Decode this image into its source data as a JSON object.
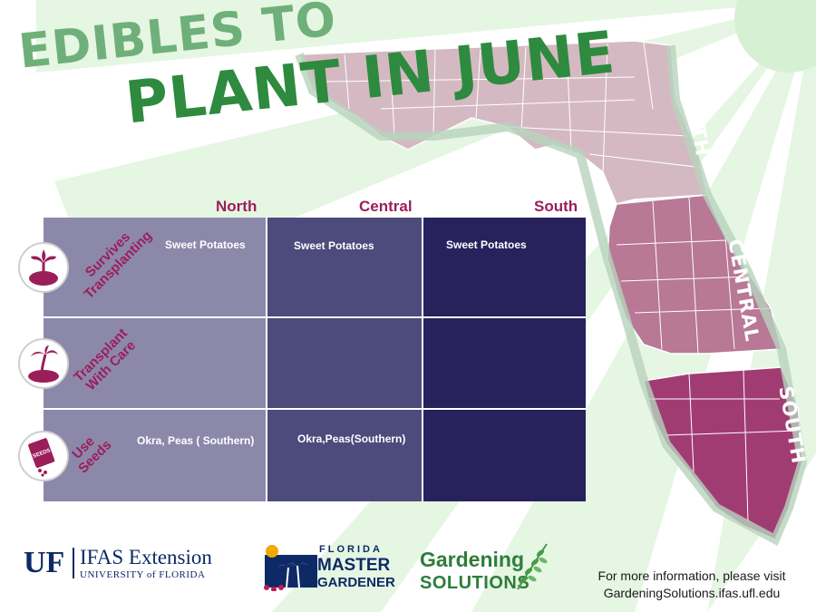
{
  "title": {
    "line1": "EDIBLES TO",
    "line2": "PLANT IN JUNE"
  },
  "columns": [
    "North",
    "Central",
    "South"
  ],
  "rows": [
    {
      "label": [
        "Survives",
        "Transplanting"
      ],
      "icon": "sprout-icon",
      "cells": [
        "Sweet Potatoes",
        "Sweet Potatoes",
        "Sweet Potatoes"
      ]
    },
    {
      "label": [
        "Transplant",
        "With Care"
      ],
      "icon": "palm-tree-icon",
      "cells": [
        "",
        "",
        ""
      ]
    },
    {
      "label": [
        "Use",
        "Seeds"
      ],
      "icon": "seed-packet-icon",
      "seed_packet_text": "SEEDS",
      "cells": [
        "Okra, Peas ( Southern)",
        "Okra,Peas(Southern)",
        ""
      ]
    }
  ],
  "map_regions": {
    "north": "NORTH",
    "central": "CENTRAL",
    "south": "SOUTH"
  },
  "logos": {
    "uf": {
      "mark": "UF",
      "name": "IFAS Extension",
      "sub": "UNIVERSITY of FLORIDA"
    },
    "master_gardener": {
      "line1": "FLORIDA",
      "line2": "MASTER",
      "line3": "GARDENER"
    },
    "gardening_solutions": {
      "line1": "Gardening",
      "line2": "SOLUTIONS"
    }
  },
  "footer": {
    "line1": "For more information, please visit",
    "line2": "GardeningSolutions.ifas.ufl.edu"
  },
  "colors": {
    "title_light": "#6fb07a",
    "title_dark": "#2e8a3e",
    "accent": "#9b1e5a",
    "north_col": "#8c88aa",
    "central_col": "#4d4a7c",
    "south_col": "#27225c",
    "map_north": "#d4b9c2",
    "map_central": "#b87896",
    "map_south": "#a13c73"
  }
}
